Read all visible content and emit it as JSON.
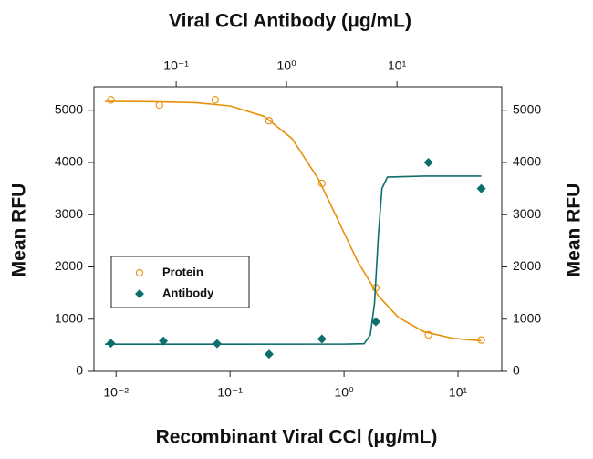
{
  "chart_data": {
    "type": "scatter",
    "x_label": "Recombinant Viral CCl (μg/mL)",
    "x2_label": "Viral CCl Antibody (μg/mL)",
    "y_label": "Mean RFU",
    "y2_label": "Mean RFU",
    "log_x": true,
    "xlim": [
      0.0064,
      24.2
    ],
    "xticks": [
      {
        "value": 0.01,
        "label": "10⁻²"
      },
      {
        "value": 0.1,
        "label": "10⁻¹"
      },
      {
        "value": 1,
        "label": "10⁰"
      },
      {
        "value": 10,
        "label": "10¹"
      }
    ],
    "x2lim": [
      0.018,
      89
    ],
    "x2ticks": [
      {
        "value": 0.1,
        "label": "10⁻¹"
      },
      {
        "value": 1,
        "label": "10⁰"
      },
      {
        "value": 10,
        "label": "10¹"
      }
    ],
    "ylim": [
      0,
      5450
    ],
    "yticks": [
      0,
      1000,
      2000,
      3000,
      4000,
      5000
    ],
    "y2lim": [
      0,
      5450
    ],
    "y2ticks": [
      0,
      1000,
      2000,
      3000,
      4000,
      5000
    ],
    "legend": "lower left",
    "series": [
      {
        "name": "Protein",
        "color": "#e8900a",
        "marker": "circle",
        "x": [
          0.009,
          0.024,
          0.074,
          0.22,
          0.64,
          1.9,
          5.5,
          16
        ],
        "values": [
          5200,
          5100,
          5200,
          4800,
          3600,
          1600,
          700,
          600
        ],
        "fit": {
          "x": [
            0.008,
            0.02,
            0.05,
            0.1,
            0.2,
            0.35,
            0.6,
            0.9,
            1.3,
            2,
            3,
            5,
            9,
            16
          ],
          "values": [
            5170,
            5165,
            5145,
            5083,
            4882,
            4457,
            3671,
            2865,
            2128,
            1445,
            1034,
            761,
            633,
            586
          ]
        }
      },
      {
        "name": "Antibody",
        "color": "#0e6e6e",
        "marker": "diamond",
        "axis": "y2",
        "x": [
          0.009,
          0.026,
          0.077,
          0.22,
          0.64,
          1.9,
          5.5,
          16
        ],
        "values": [
          540,
          580,
          530,
          330,
          620,
          950,
          4000,
          3500
        ],
        "fit": {
          "x": [
            0.008,
            0.1,
            1,
            1.5,
            1.7,
            1.85,
            2,
            2.15,
            2.4,
            5,
            16
          ],
          "values": [
            520,
            520,
            522,
            530,
            700,
            1300,
            2600,
            3500,
            3720,
            3740,
            3740
          ]
        }
      }
    ]
  }
}
